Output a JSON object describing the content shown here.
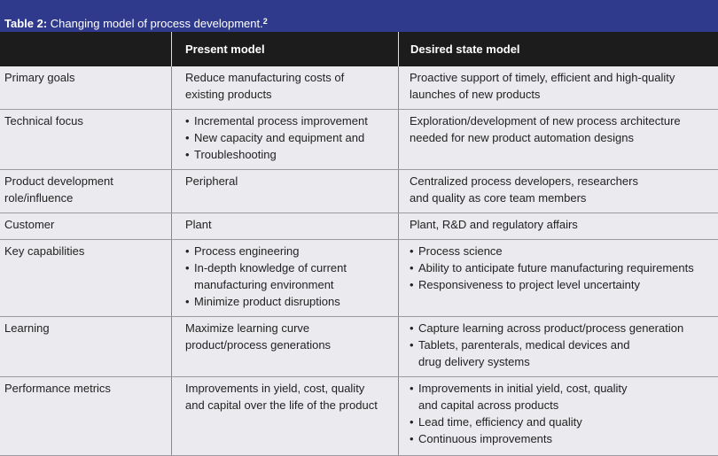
{
  "title": {
    "label": "Table 2:",
    "text": "Changing model of process development.",
    "sup": "2"
  },
  "headers": {
    "col0": "",
    "col1": "Present model",
    "col2": "Desired state model"
  },
  "rows": [
    {
      "label": [
        "Primary goals"
      ],
      "present": [
        {
          "t": "Reduce manufacturing costs of"
        },
        {
          "t": "existing products"
        }
      ],
      "desired": [
        {
          "t": "Proactive support of timely, efficient and high-quality"
        },
        {
          "t": "launches of new products"
        }
      ]
    },
    {
      "label": [
        "Technical focus"
      ],
      "present": [
        {
          "t": "Incremental process improvement",
          "b": true
        },
        {
          "t": "New capacity and equipment and",
          "b": true
        },
        {
          "t": "Troubleshooting",
          "b": true
        }
      ],
      "desired": [
        {
          "t": "Exploration/development of new process architecture"
        },
        {
          "t": "needed for new product automation designs"
        }
      ]
    },
    {
      "label": [
        "Product development",
        "role/influence"
      ],
      "present": [
        {
          "t": "Peripheral"
        }
      ],
      "desired": [
        {
          "t": "Centralized process developers, researchers"
        },
        {
          "t": "and quality as core team members"
        }
      ]
    },
    {
      "label": [
        "Customer"
      ],
      "present": [
        {
          "t": "Plant"
        }
      ],
      "desired": [
        {
          "t": "Plant, R&D and regulatory affairs"
        }
      ]
    },
    {
      "label": [
        "Key capabilities"
      ],
      "present": [
        {
          "t": "Process engineering",
          "b": true
        },
        {
          "t": "In-depth knowledge of current",
          "b": true
        },
        {
          "t": "manufacturing environment",
          "i": true
        },
        {
          "t": "Minimize product disruptions",
          "b": true
        }
      ],
      "desired": [
        {
          "t": "Process science",
          "b": true
        },
        {
          "t": "Ability to anticipate future manufacturing requirements",
          "b": true
        },
        {
          "t": "Responsiveness to project level uncertainty",
          "b": true
        }
      ]
    },
    {
      "label": [
        "Learning"
      ],
      "present": [
        {
          "t": "Maximize learning curve"
        },
        {
          "t": "product/process generations"
        }
      ],
      "desired": [
        {
          "t": "Capture learning across product/process generation",
          "b": true
        },
        {
          "t": "Tablets, parenterals, medical devices and",
          "b": true
        },
        {
          "t": "drug delivery systems",
          "i": true
        }
      ]
    },
    {
      "label": [
        "Performance metrics"
      ],
      "present": [
        {
          "t": "Improvements in yield, cost, quality"
        },
        {
          "t": "and capital over the life of the product"
        }
      ],
      "desired": [
        {
          "t": "Improvements in initial yield, cost, quality",
          "b": true
        },
        {
          "t": "and capital across products",
          "i": true
        },
        {
          "t": "Lead time, efficiency and quality",
          "b": true
        },
        {
          "t": "Continuous improvements",
          "b": true
        }
      ]
    }
  ]
}
